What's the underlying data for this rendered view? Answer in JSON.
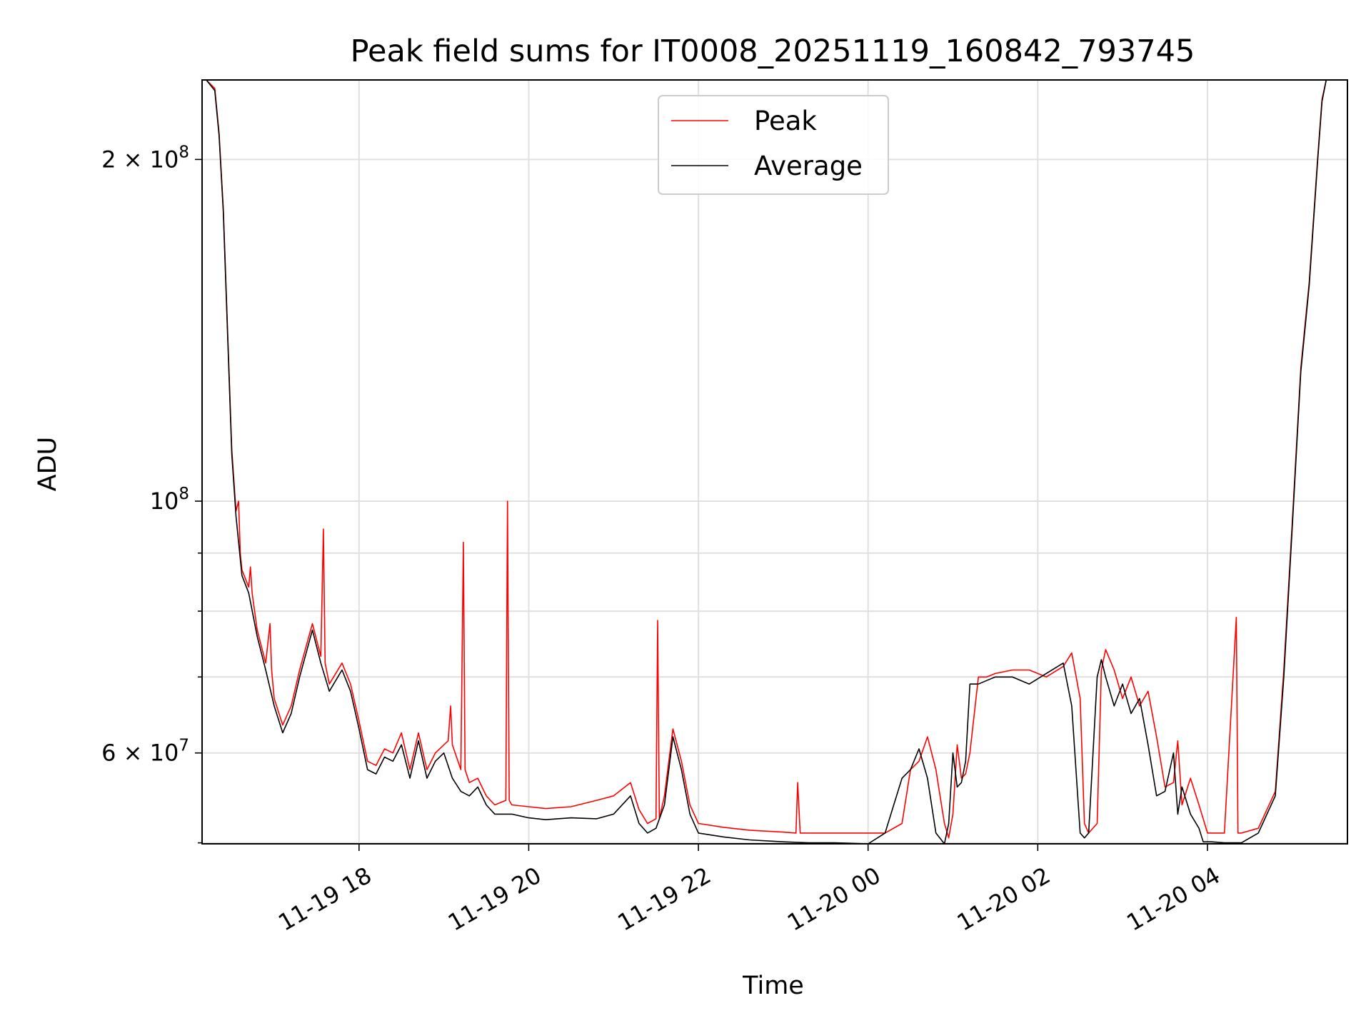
{
  "chart_data": {
    "type": "line",
    "title": "Peak field sums for IT0008_20251119_160842_793745",
    "xlabel": "Time",
    "ylabel": "ADU",
    "yscale": "log",
    "xlim": [
      16.15,
      29.65
    ],
    "ylim": [
      49900000,
      235000000
    ],
    "grid": true,
    "legend_position": "top-center",
    "x_unit": "hours since 2025-11-19 00:00",
    "x_ticks": [
      {
        "value": 18,
        "label": "11-19 18"
      },
      {
        "value": 20,
        "label": "11-19 20"
      },
      {
        "value": 22,
        "label": "11-19 22"
      },
      {
        "value": 24,
        "label": "11-20 00"
      },
      {
        "value": 26,
        "label": "11-20 02"
      },
      {
        "value": 28,
        "label": "11-20 04"
      }
    ],
    "y_ticks_major": [
      {
        "value": 60000000,
        "base": "6",
        "sep": " × ",
        "mantissa": "10",
        "exp": "7"
      },
      {
        "value": 100000000,
        "base": "",
        "sep": "",
        "mantissa": "10",
        "exp": "8"
      },
      {
        "value": 200000000,
        "base": "2",
        "sep": " × ",
        "mantissa": "10",
        "exp": "8"
      }
    ],
    "y_ticks_minor": [
      50000000,
      70000000,
      80000000,
      90000000
    ],
    "series": [
      {
        "name": "Average",
        "color": "#000000",
        "x": [
          16.2,
          16.3,
          16.35,
          16.4,
          16.5,
          16.55,
          16.62,
          16.7,
          16.8,
          16.9,
          17.0,
          17.1,
          17.2,
          17.3,
          17.45,
          17.55,
          17.65,
          17.8,
          17.9,
          18.0,
          18.1,
          18.2,
          18.3,
          18.4,
          18.5,
          18.6,
          18.7,
          18.8,
          18.9,
          19.0,
          19.1,
          19.2,
          19.3,
          19.4,
          19.5,
          19.6,
          19.8,
          20.0,
          20.2,
          20.5,
          20.8,
          21.0,
          21.2,
          21.3,
          21.4,
          21.5,
          21.6,
          21.7,
          21.8,
          21.9,
          22.0,
          22.3,
          22.6,
          23.0,
          23.3,
          23.6,
          24.0,
          24.2,
          24.4,
          24.5,
          24.6,
          24.7,
          24.8,
          24.9,
          24.95,
          25.0,
          25.05,
          25.1,
          25.15,
          25.2,
          25.3,
          25.4,
          25.5,
          25.7,
          25.9,
          26.1,
          26.3,
          26.4,
          26.5,
          26.55,
          26.6,
          26.7,
          26.75,
          26.8,
          26.9,
          27.0,
          27.1,
          27.2,
          27.3,
          27.4,
          27.5,
          27.6,
          27.65,
          27.7,
          27.8,
          27.9,
          27.95,
          28.0,
          28.05,
          28.2,
          28.4,
          28.6,
          28.8,
          28.9,
          29.0,
          29.1,
          29.2,
          29.3,
          29.35,
          29.4,
          29.5
        ],
        "y": [
          235000000,
          230000000,
          210000000,
          180000000,
          110000000,
          97000000,
          86000000,
          83000000,
          76000000,
          71000000,
          66000000,
          62500000,
          65000000,
          70000000,
          77000000,
          72000000,
          68000000,
          71000000,
          68000000,
          63000000,
          58000000,
          57500000,
          59500000,
          59000000,
          61000000,
          57000000,
          61500000,
          57000000,
          59000000,
          60000000,
          57000000,
          55500000,
          55000000,
          56000000,
          54000000,
          53000000,
          53000000,
          52600000,
          52400000,
          52600000,
          52500000,
          53000000,
          55000000,
          52000000,
          51000000,
          51500000,
          54000000,
          62000000,
          58000000,
          53000000,
          51000000,
          50600000,
          50300000,
          50100000,
          50000000,
          50000000,
          49900000,
          51000000,
          57000000,
          58000000,
          60500000,
          57000000,
          51000000,
          49900000,
          52000000,
          60000000,
          56000000,
          56500000,
          59000000,
          69000000,
          69000000,
          69500000,
          70000000,
          70000000,
          69000000,
          70500000,
          72000000,
          66000000,
          51000000,
          50500000,
          51000000,
          70000000,
          72500000,
          70000000,
          66000000,
          69000000,
          65000000,
          67000000,
          61000000,
          55000000,
          55500000,
          60000000,
          53000000,
          56000000,
          53000000,
          51500000,
          50100000,
          50100000,
          50100000,
          50000000,
          50000000,
          51000000,
          55000000,
          70000000,
          95000000,
          130000000,
          155000000,
          200000000,
          225000000,
          235000000,
          235000000
        ]
      },
      {
        "name": "Peak",
        "color": "#ff0000",
        "x": [
          16.2,
          16.3,
          16.35,
          16.4,
          16.5,
          16.55,
          16.58,
          16.6,
          16.62,
          16.7,
          16.72,
          16.74,
          16.8,
          16.9,
          16.95,
          16.97,
          17.0,
          17.1,
          17.2,
          17.3,
          17.45,
          17.55,
          17.58,
          17.6,
          17.65,
          17.8,
          17.9,
          18.0,
          18.1,
          18.2,
          18.3,
          18.4,
          18.5,
          18.6,
          18.7,
          18.8,
          18.9,
          19.05,
          19.08,
          19.1,
          19.2,
          19.23,
          19.25,
          19.3,
          19.4,
          19.5,
          19.6,
          19.73,
          19.75,
          19.77,
          19.8,
          20.0,
          20.2,
          20.5,
          20.8,
          21.0,
          21.2,
          21.3,
          21.4,
          21.5,
          21.52,
          21.54,
          21.6,
          21.7,
          21.8,
          21.9,
          22.0,
          22.3,
          22.6,
          23.0,
          23.15,
          23.17,
          23.2,
          23.3,
          23.6,
          24.0,
          24.2,
          24.4,
          24.5,
          24.6,
          24.7,
          24.8,
          24.9,
          24.95,
          25.0,
          25.05,
          25.1,
          25.15,
          25.2,
          25.3,
          25.4,
          25.5,
          25.7,
          25.9,
          26.1,
          26.3,
          26.4,
          26.5,
          26.55,
          26.6,
          26.7,
          26.75,
          26.8,
          26.9,
          27.0,
          27.1,
          27.2,
          27.3,
          27.4,
          27.5,
          27.6,
          27.65,
          27.7,
          27.8,
          27.9,
          27.95,
          28.0,
          28.05,
          28.2,
          28.34,
          28.36,
          28.38,
          28.4,
          28.6,
          28.8,
          28.9,
          29.0,
          29.1,
          29.2,
          29.3,
          29.35,
          29.4,
          29.5
        ],
        "y": [
          235000000,
          231000000,
          211000000,
          181000000,
          111000000,
          98000000,
          100000000,
          90000000,
          87000000,
          84000000,
          87500000,
          83000000,
          77000000,
          72000000,
          78000000,
          71000000,
          67000000,
          63500000,
          66000000,
          71000000,
          78000000,
          73000000,
          94500000,
          72000000,
          69000000,
          72000000,
          69000000,
          64000000,
          59000000,
          58500000,
          60500000,
          60000000,
          62500000,
          58000000,
          62500000,
          58000000,
          60000000,
          61500000,
          66000000,
          61000000,
          58000000,
          92000000,
          58000000,
          56500000,
          57000000,
          55000000,
          54000000,
          54500000,
          100000000,
          54500000,
          54000000,
          53800000,
          53600000,
          53800000,
          54500000,
          55000000,
          56500000,
          53500000,
          52000000,
          52500000,
          78500000,
          52500000,
          55000000,
          63000000,
          59000000,
          54000000,
          52000000,
          51600000,
          51300000,
          51100000,
          51000000,
          56500000,
          51000000,
          51000000,
          51000000,
          51000000,
          51000000,
          52000000,
          58000000,
          59000000,
          62000000,
          58000000,
          52000000,
          50500000,
          53000000,
          61000000,
          57000000,
          57500000,
          60000000,
          70000000,
          70000000,
          70500000,
          71000000,
          71000000,
          70000000,
          71500000,
          73500000,
          67000000,
          52000000,
          51000000,
          52000000,
          71000000,
          74000000,
          71000000,
          67000000,
          70000000,
          66000000,
          68000000,
          62000000,
          56000000,
          56500000,
          61500000,
          54000000,
          57000000,
          54000000,
          52500000,
          51000000,
          51000000,
          51000000,
          79000000,
          51000000,
          51000000,
          51000000,
          51500000,
          55500000,
          71000000,
          96000000,
          131000000,
          156000000,
          201000000,
          226000000,
          235000000,
          235000000
        ]
      }
    ]
  }
}
